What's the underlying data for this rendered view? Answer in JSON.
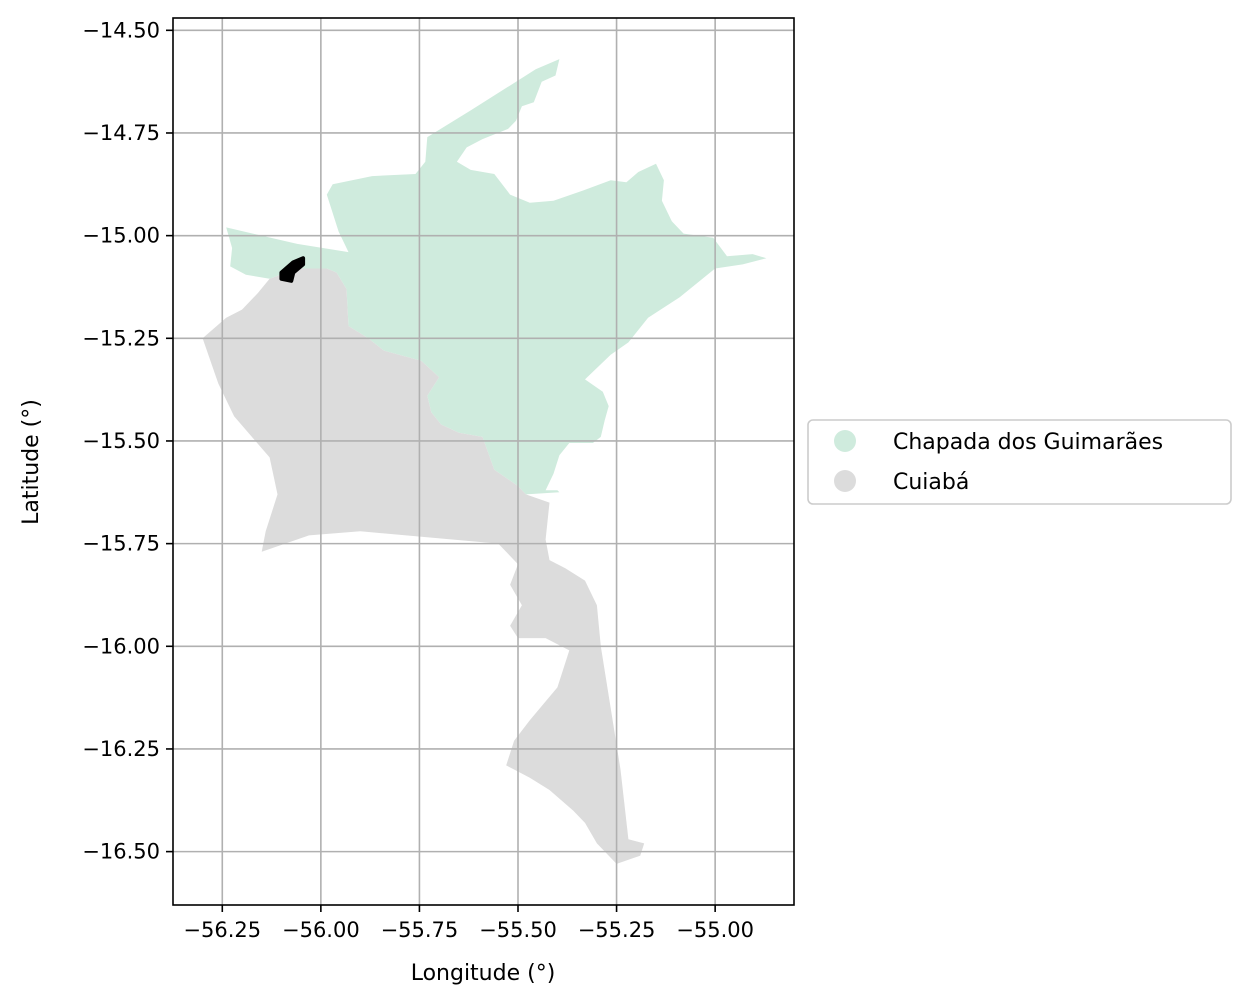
{
  "chart_data": {
    "type": "map",
    "xlabel": "Longitude (°)",
    "ylabel": "Latitude (°)",
    "xlim": [
      -56.375,
      -54.8
    ],
    "ylim": [
      -16.63,
      -14.47
    ],
    "x_ticks": [
      -56.25,
      -56.0,
      -55.75,
      -55.5,
      -55.25,
      -55.0
    ],
    "x_tick_labels": [
      "−56.25",
      "−56.00",
      "−55.75",
      "−55.50",
      "−55.25",
      "−55.00"
    ],
    "y_ticks": [
      -14.5,
      -14.75,
      -15.0,
      -15.25,
      -15.5,
      -15.75,
      -16.0,
      -16.25,
      -16.5
    ],
    "y_tick_labels": [
      "−14.50",
      "−14.75",
      "−15.00",
      "−15.25",
      "−15.50",
      "−15.75",
      "−16.00",
      "−16.25",
      "−16.50"
    ],
    "grid": true,
    "legend_position": "center-right-outside",
    "regions": [
      {
        "name": "Chapada dos Guimarães",
        "color": "#cfebdd",
        "polygon": [
          [
            -56.24,
            -14.98
          ],
          [
            -56.06,
            -15.02
          ],
          [
            -55.93,
            -15.04
          ],
          [
            -55.955,
            -14.99
          ],
          [
            -55.985,
            -14.9
          ],
          [
            -55.97,
            -14.875
          ],
          [
            -55.87,
            -14.855
          ],
          [
            -55.76,
            -14.85
          ],
          [
            -55.735,
            -14.82
          ],
          [
            -55.73,
            -14.76
          ],
          [
            -55.62,
            -14.695
          ],
          [
            -55.455,
            -14.595
          ],
          [
            -55.395,
            -14.57
          ],
          [
            -55.405,
            -14.61
          ],
          [
            -55.44,
            -14.625
          ],
          [
            -55.46,
            -14.675
          ],
          [
            -55.49,
            -14.685
          ],
          [
            -55.505,
            -14.72
          ],
          [
            -55.525,
            -14.74
          ],
          [
            -55.59,
            -14.765
          ],
          [
            -55.63,
            -14.785
          ],
          [
            -55.655,
            -14.82
          ],
          [
            -55.62,
            -14.84
          ],
          [
            -55.56,
            -14.85
          ],
          [
            -55.52,
            -14.9
          ],
          [
            -55.47,
            -14.92
          ],
          [
            -55.41,
            -14.915
          ],
          [
            -55.335,
            -14.89
          ],
          [
            -55.265,
            -14.865
          ],
          [
            -55.225,
            -14.87
          ],
          [
            -55.195,
            -14.845
          ],
          [
            -55.15,
            -14.825
          ],
          [
            -55.13,
            -14.865
          ],
          [
            -55.135,
            -14.915
          ],
          [
            -55.11,
            -14.965
          ],
          [
            -55.08,
            -14.995
          ],
          [
            -55.005,
            -15.005
          ],
          [
            -54.97,
            -15.05
          ],
          [
            -54.905,
            -15.045
          ],
          [
            -54.87,
            -15.055
          ],
          [
            -54.93,
            -15.07
          ],
          [
            -55.0,
            -15.08
          ],
          [
            -55.09,
            -15.15
          ],
          [
            -55.17,
            -15.2
          ],
          [
            -55.22,
            -15.26
          ],
          [
            -55.265,
            -15.29
          ],
          [
            -55.33,
            -15.35
          ],
          [
            -55.285,
            -15.38
          ],
          [
            -55.27,
            -15.415
          ],
          [
            -55.28,
            -15.45
          ],
          [
            -55.29,
            -15.49
          ],
          [
            -55.31,
            -15.505
          ],
          [
            -55.37,
            -15.505
          ],
          [
            -55.395,
            -15.535
          ],
          [
            -55.41,
            -15.58
          ],
          [
            -55.43,
            -15.62
          ],
          [
            -55.4,
            -15.62
          ],
          [
            -55.395,
            -15.625
          ],
          [
            -55.48,
            -15.63
          ],
          [
            -55.5,
            -15.61
          ],
          [
            -55.56,
            -15.57
          ],
          [
            -55.59,
            -15.49
          ],
          [
            -55.65,
            -15.48
          ],
          [
            -55.695,
            -15.46
          ],
          [
            -55.72,
            -15.43
          ],
          [
            -55.73,
            -15.39
          ],
          [
            -55.7,
            -15.345
          ],
          [
            -55.745,
            -15.305
          ],
          [
            -55.84,
            -15.28
          ],
          [
            -55.88,
            -15.25
          ],
          [
            -55.93,
            -15.22
          ],
          [
            -55.935,
            -15.13
          ],
          [
            -55.96,
            -15.09
          ],
          [
            -55.985,
            -15.08
          ],
          [
            -56.06,
            -15.08
          ],
          [
            -56.13,
            -15.105
          ],
          [
            -56.19,
            -15.095
          ],
          [
            -56.23,
            -15.075
          ],
          [
            -56.225,
            -15.03
          ]
        ]
      },
      {
        "name": "Cuiabá",
        "color": "#dcdcdc",
        "polygon": [
          [
            -56.13,
            -15.105
          ],
          [
            -56.06,
            -15.08
          ],
          [
            -55.985,
            -15.08
          ],
          [
            -55.96,
            -15.09
          ],
          [
            -55.935,
            -15.13
          ],
          [
            -55.93,
            -15.22
          ],
          [
            -55.88,
            -15.25
          ],
          [
            -55.84,
            -15.28
          ],
          [
            -55.745,
            -15.305
          ],
          [
            -55.7,
            -15.345
          ],
          [
            -55.73,
            -15.39
          ],
          [
            -55.72,
            -15.43
          ],
          [
            -55.695,
            -15.46
          ],
          [
            -55.65,
            -15.48
          ],
          [
            -55.59,
            -15.49
          ],
          [
            -55.56,
            -15.57
          ],
          [
            -55.5,
            -15.61
          ],
          [
            -55.48,
            -15.63
          ],
          [
            -55.42,
            -15.65
          ],
          [
            -55.43,
            -15.74
          ],
          [
            -55.42,
            -15.79
          ],
          [
            -55.38,
            -15.81
          ],
          [
            -55.33,
            -15.84
          ],
          [
            -55.3,
            -15.9
          ],
          [
            -55.29,
            -16.0
          ],
          [
            -55.27,
            -16.12
          ],
          [
            -55.24,
            -16.3
          ],
          [
            -55.22,
            -16.47
          ],
          [
            -55.18,
            -16.48
          ],
          [
            -55.19,
            -16.51
          ],
          [
            -55.25,
            -16.53
          ],
          [
            -55.3,
            -16.48
          ],
          [
            -55.33,
            -16.43
          ],
          [
            -55.36,
            -16.4
          ],
          [
            -55.42,
            -16.35
          ],
          [
            -55.47,
            -16.32
          ],
          [
            -55.51,
            -16.3
          ],
          [
            -55.53,
            -16.29
          ],
          [
            -55.51,
            -16.23
          ],
          [
            -55.47,
            -16.18
          ],
          [
            -55.4,
            -16.1
          ],
          [
            -55.37,
            -16.01
          ],
          [
            -55.43,
            -15.98
          ],
          [
            -55.5,
            -15.98
          ],
          [
            -55.52,
            -15.95
          ],
          [
            -55.49,
            -15.9
          ],
          [
            -55.52,
            -15.85
          ],
          [
            -55.5,
            -15.8
          ],
          [
            -55.55,
            -15.75
          ],
          [
            -55.9,
            -15.72
          ],
          [
            -56.03,
            -15.73
          ],
          [
            -56.15,
            -15.77
          ],
          [
            -56.14,
            -15.72
          ],
          [
            -56.11,
            -15.63
          ],
          [
            -56.13,
            -15.54
          ],
          [
            -56.22,
            -15.44
          ],
          [
            -56.26,
            -15.36
          ],
          [
            -56.3,
            -15.25
          ],
          [
            -56.24,
            -15.2
          ],
          [
            -56.2,
            -15.18
          ],
          [
            -56.16,
            -15.14
          ]
        ]
      },
      {
        "name": "highlighted-area",
        "color": "#000000",
        "polygon": [
          [
            -56.1,
            -15.09
          ],
          [
            -56.07,
            -15.065
          ],
          [
            -56.045,
            -15.055
          ],
          [
            -56.045,
            -15.07
          ],
          [
            -56.07,
            -15.09
          ],
          [
            -56.075,
            -15.11
          ],
          [
            -56.1,
            -15.105
          ]
        ]
      }
    ],
    "legend": [
      {
        "label": "Chapada dos Guimarães",
        "color": "#cfebdd"
      },
      {
        "label": "Cuiabá",
        "color": "#dcdcdc"
      }
    ]
  }
}
